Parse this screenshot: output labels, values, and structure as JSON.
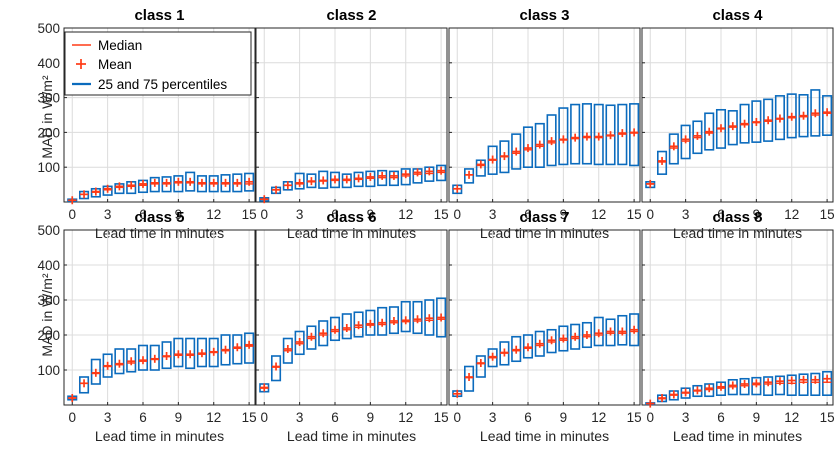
{
  "legend": {
    "median": "Median",
    "mean": "Mean",
    "percentiles": "25 and 75 percentiles"
  },
  "colors": {
    "box": "#0b6bbd",
    "median": "#ff3b16",
    "mean": "#ff3b16"
  },
  "chart_data": {
    "type": "box",
    "xlabel": "Lead time in minutes",
    "ylabel": "MAD in W/m²",
    "xlim": [
      -0.7,
      15.5
    ],
    "ylim": [
      0,
      500
    ],
    "xticks": [
      0,
      3,
      6,
      9,
      12,
      15
    ],
    "yticks": [
      100,
      200,
      300,
      400,
      500
    ],
    "x": [
      0,
      1,
      2,
      3,
      4,
      5,
      6,
      7,
      8,
      9,
      10,
      11,
      12,
      13,
      14,
      15
    ],
    "panels": [
      {
        "title": "class 1",
        "q25": [
          2,
          10,
          15,
          20,
          25,
          25,
          28,
          30,
          30,
          30,
          32,
          30,
          30,
          30,
          30,
          32
        ],
        "q75": [
          8,
          30,
          38,
          45,
          52,
          58,
          62,
          70,
          72,
          75,
          85,
          75,
          75,
          78,
          80,
          82
        ],
        "median": [
          5,
          22,
          28,
          35,
          42,
          45,
          48,
          52,
          52,
          55,
          55,
          52,
          52,
          52,
          52,
          52
        ],
        "mean": [
          5,
          22,
          30,
          38,
          45,
          48,
          52,
          55,
          55,
          58,
          58,
          55,
          55,
          55,
          55,
          58
        ]
      },
      {
        "title": "class 2",
        "q25": [
          3,
          25,
          35,
          38,
          42,
          40,
          42,
          42,
          45,
          45,
          48,
          48,
          50,
          55,
          60,
          62
        ],
        "q75": [
          12,
          42,
          58,
          82,
          80,
          88,
          85,
          80,
          85,
          88,
          90,
          88,
          95,
          95,
          100,
          105
        ],
        "median": [
          8,
          35,
          48,
          52,
          58,
          60,
          62,
          62,
          65,
          68,
          70,
          70,
          75,
          80,
          82,
          85
        ],
        "mean": [
          8,
          35,
          48,
          55,
          60,
          62,
          65,
          65,
          68,
          72,
          75,
          75,
          80,
          85,
          88,
          90
        ]
      },
      {
        "title": "class 3",
        "q25": [
          25,
          55,
          75,
          80,
          85,
          95,
          100,
          100,
          105,
          108,
          110,
          110,
          108,
          108,
          108,
          105
        ],
        "q75": [
          48,
          95,
          120,
          160,
          175,
          195,
          215,
          225,
          250,
          270,
          280,
          282,
          280,
          278,
          280,
          282
        ],
        "median": [
          38,
          78,
          105,
          120,
          130,
          140,
          150,
          160,
          170,
          178,
          182,
          185,
          185,
          190,
          195,
          198
        ],
        "mean": [
          38,
          78,
          108,
          122,
          132,
          145,
          155,
          165,
          175,
          180,
          185,
          188,
          188,
          192,
          198,
          200
        ]
      },
      {
        "title": "class 4",
        "q25": [
          42,
          80,
          110,
          125,
          140,
          150,
          155,
          165,
          170,
          172,
          175,
          180,
          185,
          188,
          190,
          192
        ],
        "q75": [
          58,
          145,
          195,
          220,
          232,
          255,
          265,
          262,
          280,
          290,
          295,
          305,
          310,
          308,
          322,
          305
        ],
        "median": [
          52,
          115,
          155,
          175,
          185,
          198,
          210,
          215,
          222,
          228,
          232,
          238,
          242,
          245,
          250,
          255
        ],
        "mean": [
          52,
          118,
          160,
          180,
          190,
          202,
          212,
          218,
          225,
          230,
          235,
          240,
          245,
          248,
          255,
          258
        ]
      },
      {
        "title": "class 5",
        "q25": [
          15,
          35,
          60,
          80,
          90,
          95,
          100,
          100,
          105,
          110,
          105,
          110,
          110,
          115,
          118,
          120
        ],
        "q75": [
          25,
          80,
          130,
          145,
          160,
          160,
          170,
          170,
          180,
          190,
          190,
          190,
          190,
          200,
          200,
          205
        ],
        "median": [
          20,
          62,
          90,
          110,
          115,
          120,
          125,
          130,
          138,
          142,
          142,
          145,
          150,
          155,
          162,
          168
        ],
        "mean": [
          20,
          62,
          92,
          112,
          118,
          125,
          128,
          132,
          140,
          145,
          145,
          148,
          152,
          158,
          165,
          172
        ]
      },
      {
        "title": "class 6",
        "q25": [
          38,
          70,
          120,
          145,
          160,
          170,
          185,
          190,
          195,
          200,
          200,
          205,
          210,
          205,
          200,
          195
        ],
        "q75": [
          60,
          140,
          190,
          210,
          225,
          240,
          250,
          260,
          265,
          270,
          278,
          280,
          295,
          295,
          300,
          305
        ],
        "median": [
          48,
          108,
          155,
          175,
          190,
          200,
          210,
          215,
          222,
          228,
          230,
          235,
          238,
          240,
          242,
          245
        ],
        "mean": [
          50,
          110,
          160,
          180,
          195,
          205,
          215,
          220,
          228,
          232,
          235,
          240,
          242,
          245,
          248,
          250
        ]
      },
      {
        "title": "class 7",
        "q25": [
          25,
          40,
          80,
          110,
          115,
          125,
          135,
          140,
          150,
          155,
          160,
          165,
          170,
          170,
          172,
          170
        ],
        "q75": [
          40,
          110,
          140,
          160,
          180,
          195,
          200,
          210,
          215,
          225,
          230,
          235,
          250,
          245,
          255,
          260
        ],
        "median": [
          32,
          78,
          118,
          135,
          148,
          155,
          162,
          170,
          180,
          185,
          190,
          195,
          200,
          205,
          205,
          210
        ],
        "mean": [
          32,
          80,
          120,
          138,
          150,
          158,
          165,
          175,
          185,
          190,
          195,
          200,
          205,
          210,
          210,
          215
        ]
      },
      {
        "title": "class 8",
        "q25": [
          2,
          10,
          15,
          20,
          25,
          25,
          28,
          30,
          30,
          30,
          28,
          30,
          28,
          28,
          28,
          28
        ],
        "q75": [
          6,
          28,
          40,
          48,
          55,
          60,
          65,
          72,
          75,
          78,
          80,
          82,
          85,
          88,
          90,
          95
        ],
        "median": [
          4,
          18,
          28,
          34,
          40,
          44,
          48,
          52,
          55,
          58,
          60,
          62,
          62,
          65,
          65,
          65
        ],
        "mean": [
          4,
          20,
          30,
          36,
          42,
          48,
          52,
          56,
          60,
          62,
          65,
          68,
          70,
          72,
          72,
          75
        ]
      }
    ]
  }
}
